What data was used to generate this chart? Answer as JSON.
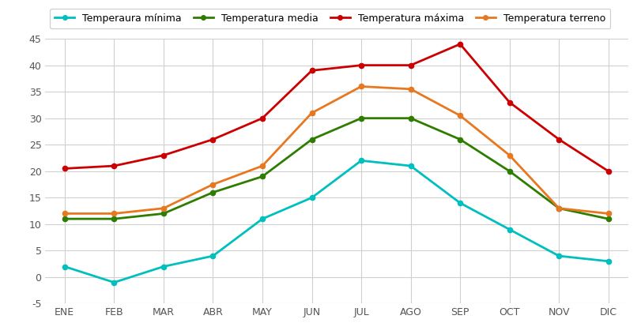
{
  "months": [
    "ENE",
    "FEB",
    "MAR",
    "ABR",
    "MAY",
    "JUN",
    "JUL",
    "AGO",
    "SEP",
    "OCT",
    "NOV",
    "DIC"
  ],
  "temp_minima": [
    2,
    -1,
    2,
    4,
    11,
    15,
    22,
    21,
    14,
    9,
    4,
    3
  ],
  "temp_media": [
    11,
    11,
    12,
    16,
    19,
    26,
    30,
    30,
    26,
    20,
    13,
    11
  ],
  "temp_maxima": [
    20.5,
    21,
    23,
    26,
    30,
    39,
    40,
    40,
    44,
    33,
    26,
    20
  ],
  "temp_terreno": [
    12,
    12,
    13,
    17.5,
    21,
    31,
    36,
    35.5,
    30.5,
    23,
    13,
    12
  ],
  "color_minima": "#00BFBF",
  "color_media": "#2E7D00",
  "color_maxima": "#CC0000",
  "color_terreno": "#E87820",
  "label_minima": "Temperaura mínima",
  "label_media": "Temperatura media",
  "label_maxima": "Temperatura máxima",
  "label_terreno": "Temperatura terreno",
  "ylim": [
    -5,
    45
  ],
  "yticks_major": [
    -5,
    0,
    5,
    10,
    15,
    20,
    25,
    30,
    35,
    40,
    45
  ],
  "ytick_labels": [
    "-5",
    "0",
    "5",
    "10",
    "15",
    "20",
    "25",
    "30",
    "35",
    "40",
    "45"
  ],
  "background_color": "#ffffff",
  "grid_color": "#d0d0d0",
  "linewidth": 2.0,
  "marker": "o",
  "markersize": 4.5,
  "tick_fontsize": 9,
  "legend_fontsize": 9
}
